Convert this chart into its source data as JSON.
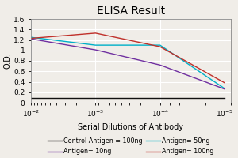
{
  "title": "ELISA Result",
  "xlabel": "Serial Dilutions of Antibody",
  "ylabel": "O.D.",
  "ylim": [
    0,
    1.6
  ],
  "x_values": [
    0.01,
    0.001,
    0.0001,
    1e-05
  ],
  "lines": {
    "control": {
      "label": "Control Antigen = 100ng",
      "color": "#111111",
      "y": [
        0.09,
        0.09,
        0.09,
        0.09
      ]
    },
    "antigen10": {
      "label": "Antigen= 10ng",
      "color": "#7030A0",
      "y": [
        1.22,
        1.01,
        0.72,
        0.26
      ]
    },
    "antigen50": {
      "label": "Antigen= 50ng",
      "color": "#00B0C8",
      "y": [
        1.25,
        1.1,
        1.1,
        0.27
      ]
    },
    "antigen100": {
      "label": "Antigen= 100ng",
      "color": "#C0302A",
      "y": [
        1.23,
        1.33,
        1.07,
        0.38
      ]
    }
  },
  "yticks": [
    0,
    0.2,
    0.4,
    0.6,
    0.8,
    1.0,
    1.2,
    1.4,
    1.6
  ],
  "xtick_labels": [
    "10^-2",
    "10^-3",
    "10^-4",
    "10^-5"
  ],
  "legend_fontsize": 5.8,
  "title_fontsize": 10,
  "axis_label_fontsize": 7,
  "tick_fontsize": 6.5,
  "bg_color": "#f0ede8"
}
